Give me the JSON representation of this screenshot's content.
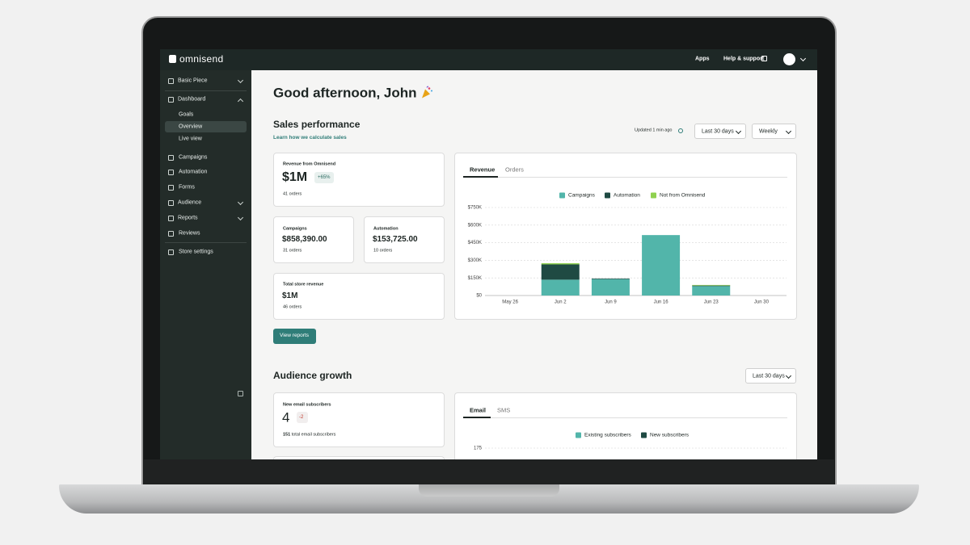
{
  "topbar": {
    "logo": "omnisend",
    "apps": "Apps",
    "help": "Help & support"
  },
  "sidebar": {
    "items": [
      "Basic Piece",
      "Dashboard",
      "Goals",
      "Overview",
      "Live view",
      "Campaigns",
      "Automation",
      "Forms",
      "Audience",
      "Reports",
      "Reviews",
      "Store settings"
    ]
  },
  "greeting": "Good afternoon, John",
  "sales": {
    "title": "Sales performance",
    "link": "Learn how we calculate sales",
    "updated": "Updated 1 min ago",
    "period": "Last 30 days",
    "interval": "Weekly",
    "cards": [
      {
        "label": "Revenue from Omnisend",
        "value": "$1M",
        "change": "+65%",
        "orders": "41 orders"
      },
      {
        "label": "Campaigns",
        "value": "$858,390.00",
        "orders": "31 orders"
      },
      {
        "label": "Automation",
        "value": "$153,725.00",
        "orders": "10 orders"
      },
      {
        "label": "Total store revenue",
        "value": "$1M",
        "orders": "46 orders"
      }
    ],
    "button": "View reports",
    "tabs": [
      "Revenue",
      "Orders"
    ]
  },
  "audience": {
    "title": "Audience growth",
    "period": "Last 30 days",
    "card": {
      "label": "New email subscribers",
      "value": "4",
      "change": "-2",
      "total": "151",
      "total_label": "total email subscribers"
    },
    "tabs": [
      "Email",
      "SMS"
    ]
  },
  "chart_data": [
    {
      "type": "bar",
      "stacked": true,
      "categories": [
        "May 26",
        "Jun 2",
        "Jun 9",
        "Jun 16",
        "Jun 23",
        "Jun 30"
      ],
      "series": [
        {
          "name": "Campaigns",
          "color": "#52b5aa",
          "values": [
            0,
            135000,
            140000,
            515000,
            80000,
            0
          ]
        },
        {
          "name": "Automation",
          "color": "#1f4a43",
          "values": [
            0,
            130000,
            5000,
            0,
            5000,
            0
          ]
        },
        {
          "name": "Not from Omnisend",
          "color": "#8fd14f",
          "values": [
            0,
            10000,
            0,
            0,
            5000,
            0
          ]
        }
      ],
      "ylim": [
        0,
        750000
      ],
      "yticks": [
        {
          "value": 0,
          "label": "$0"
        },
        {
          "value": 150000,
          "label": "$150K"
        },
        {
          "value": 300000,
          "label": "$300K"
        },
        {
          "value": 450000,
          "label": "$450K"
        },
        {
          "value": 600000,
          "label": "$600K"
        },
        {
          "value": 750000,
          "label": "$750K"
        }
      ],
      "grid": true
    },
    {
      "type": "bar",
      "series": [
        {
          "name": "Existing subscribers",
          "color": "#52b5aa"
        },
        {
          "name": "New subscribers",
          "color": "#1f4a43"
        }
      ],
      "yticks": [
        175
      ],
      "grid": true
    }
  ]
}
